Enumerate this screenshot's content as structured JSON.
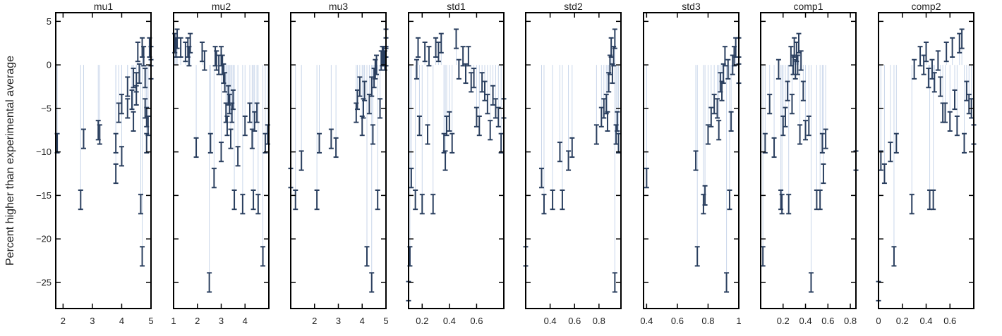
{
  "figure": {
    "ylabel": "Percent higher than experimental average",
    "colors": {
      "marker": "#2a3f5f",
      "stem": "#c9d6ea",
      "frame": "#000000"
    }
  },
  "chart_data": [
    {
      "type": "scatter",
      "title": "mu1",
      "xlim": [
        1.75,
        5
      ],
      "xticks": [
        2,
        3,
        4,
        5
      ],
      "ylim": [
        -28,
        6
      ],
      "y_ticks": [
        5,
        0,
        -5,
        -10,
        -15,
        -20,
        -25
      ],
      "error_bars": true,
      "grid": false,
      "points": [
        [
          1.8,
          -9
        ],
        [
          2.6,
          -15.5
        ],
        [
          2.7,
          -8.5
        ],
        [
          3.2,
          -7.5
        ],
        [
          3.25,
          -8
        ],
        [
          3.8,
          -12.5
        ],
        [
          3.8,
          -9
        ],
        [
          3.9,
          -5.5
        ],
        [
          4.0,
          -4.5
        ],
        [
          4.0,
          -10.5
        ],
        [
          4.2,
          -5
        ],
        [
          4.2,
          -2.5
        ],
        [
          4.35,
          -4
        ],
        [
          4.4,
          -1.5
        ],
        [
          4.4,
          -6.5
        ],
        [
          4.5,
          -2
        ],
        [
          4.5,
          -3.5
        ],
        [
          4.55,
          1.5
        ],
        [
          4.6,
          -1
        ],
        [
          4.65,
          -16
        ],
        [
          4.7,
          -22
        ],
        [
          4.7,
          2
        ],
        [
          4.75,
          1
        ],
        [
          4.8,
          -1.5
        ],
        [
          4.8,
          -5
        ],
        [
          4.85,
          -6
        ],
        [
          4.85,
          -9
        ],
        [
          4.9,
          -7
        ],
        [
          4.95,
          2
        ],
        [
          5.0,
          -0.5
        ],
        [
          5.0,
          1
        ]
      ]
    },
    {
      "type": "scatter",
      "title": "mu2",
      "xlim": [
        1,
        5
      ],
      "xticks": [
        1,
        2,
        3,
        4
      ],
      "ylim": [
        -28,
        6
      ],
      "y_ticks": [
        5,
        0,
        -5,
        -10,
        -15,
        -20,
        -25
      ],
      "error_bars": true,
      "grid": false,
      "points": [
        [
          1.05,
          2.5
        ],
        [
          1.1,
          2
        ],
        [
          1.15,
          3
        ],
        [
          1.3,
          2
        ],
        [
          1.5,
          1.5
        ],
        [
          1.6,
          2
        ],
        [
          1.65,
          1
        ],
        [
          1.7,
          2.5
        ],
        [
          1.95,
          -9.5
        ],
        [
          2.2,
          1.5
        ],
        [
          2.3,
          0.5
        ],
        [
          2.5,
          -25
        ],
        [
          2.55,
          -9
        ],
        [
          2.7,
          -13
        ],
        [
          2.75,
          1
        ],
        [
          2.8,
          0.5
        ],
        [
          2.9,
          0
        ],
        [
          3.0,
          -10
        ],
        [
          3.0,
          1
        ],
        [
          3.05,
          0
        ],
        [
          3.1,
          -1
        ],
        [
          3.15,
          -2
        ],
        [
          3.2,
          -5.5
        ],
        [
          3.25,
          -7
        ],
        [
          3.3,
          -3.5
        ],
        [
          3.35,
          -4.5
        ],
        [
          3.4,
          -8.5
        ],
        [
          3.45,
          -5.5
        ],
        [
          3.5,
          -4
        ],
        [
          3.55,
          -15.5
        ],
        [
          3.7,
          -10.5
        ],
        [
          3.9,
          -16
        ],
        [
          4.0,
          -7
        ],
        [
          4.2,
          -5.5
        ],
        [
          4.3,
          -8.5
        ],
        [
          4.35,
          -15.5
        ],
        [
          4.4,
          -6.5
        ],
        [
          4.5,
          -5.5
        ],
        [
          4.55,
          -16
        ],
        [
          4.75,
          -22
        ],
        [
          4.85,
          -9
        ],
        [
          4.95,
          -8
        ]
      ]
    },
    {
      "type": "scatter",
      "title": "mu3",
      "xlim": [
        1,
        5
      ],
      "xticks": [
        2,
        3,
        4,
        5
      ],
      "ylim": [
        -28,
        6
      ],
      "y_ticks": [
        5,
        0,
        -5,
        -10,
        -15,
        -20,
        -25
      ],
      "error_bars": true,
      "grid": false,
      "points": [
        [
          1.0,
          -13
        ],
        [
          1.2,
          -15.5
        ],
        [
          1.45,
          -11
        ],
        [
          2.1,
          -15.5
        ],
        [
          2.2,
          -9
        ],
        [
          2.7,
          -8.5
        ],
        [
          2.9,
          -9.5
        ],
        [
          3.75,
          -5.5
        ],
        [
          3.8,
          -4
        ],
        [
          3.9,
          -2.5
        ],
        [
          4.0,
          -7
        ],
        [
          4.05,
          -5
        ],
        [
          4.1,
          -3
        ],
        [
          4.2,
          -22
        ],
        [
          4.3,
          -4.5
        ],
        [
          4.4,
          -25
        ],
        [
          4.4,
          -2.5
        ],
        [
          4.45,
          -8
        ],
        [
          4.5,
          -1.5
        ],
        [
          4.55,
          -0.5
        ],
        [
          4.6,
          0
        ],
        [
          4.65,
          -15.5
        ],
        [
          4.75,
          -5
        ],
        [
          4.8,
          0.5
        ],
        [
          4.85,
          1
        ],
        [
          4.9,
          1
        ],
        [
          4.95,
          0.5
        ],
        [
          5.0,
          1
        ],
        [
          5.0,
          2
        ],
        [
          5.0,
          3
        ]
      ]
    },
    {
      "type": "scatter",
      "title": "std1",
      "xlim": [
        0.1,
        0.8
      ],
      "xticks": [
        0.2,
        0.4,
        0.6
      ],
      "ylim": [
        -28,
        6
      ],
      "y_ticks": [
        5,
        0,
        -5,
        -10,
        -15,
        -20,
        -25
      ],
      "error_bars": true,
      "grid": false,
      "points": [
        [
          0.1,
          -26
        ],
        [
          0.11,
          -22
        ],
        [
          0.12,
          -13
        ],
        [
          0.15,
          -15.5
        ],
        [
          0.16,
          -0.5
        ],
        [
          0.17,
          2
        ],
        [
          0.18,
          -7
        ],
        [
          0.2,
          -16
        ],
        [
          0.22,
          1.5
        ],
        [
          0.24,
          -8
        ],
        [
          0.25,
          1
        ],
        [
          0.28,
          -16
        ],
        [
          0.3,
          2
        ],
        [
          0.32,
          1.5
        ],
        [
          0.34,
          2.5
        ],
        [
          0.36,
          -9
        ],
        [
          0.37,
          -11
        ],
        [
          0.38,
          -7
        ],
        [
          0.4,
          -6.5
        ],
        [
          0.42,
          -9
        ],
        [
          0.45,
          3
        ],
        [
          0.47,
          -0.5
        ],
        [
          0.5,
          1
        ],
        [
          0.52,
          -1
        ],
        [
          0.54,
          1
        ],
        [
          0.56,
          -2
        ],
        [
          0.58,
          -1.5
        ],
        [
          0.6,
          -6
        ],
        [
          0.62,
          -7
        ],
        [
          0.64,
          -2
        ],
        [
          0.66,
          -3
        ],
        [
          0.68,
          -4.5
        ],
        [
          0.7,
          -7.5
        ],
        [
          0.72,
          -3.5
        ],
        [
          0.74,
          -5
        ],
        [
          0.76,
          -6
        ],
        [
          0.78,
          -9
        ],
        [
          0.8,
          -5
        ]
      ]
    },
    {
      "type": "scatter",
      "title": "std2",
      "xlim": [
        0.2,
        0.98
      ],
      "xticks": [
        0.4,
        0.6,
        0.8
      ],
      "ylim": [
        -28,
        6
      ],
      "y_ticks": [
        5,
        0,
        -5,
        -10,
        -15,
        -20,
        -25
      ],
      "error_bars": true,
      "grid": false,
      "points": [
        [
          0.2,
          -22
        ],
        [
          0.33,
          -13
        ],
        [
          0.35,
          -16
        ],
        [
          0.42,
          -15.5
        ],
        [
          0.48,
          -10
        ],
        [
          0.5,
          -15.5
        ],
        [
          0.55,
          -11
        ],
        [
          0.58,
          -9.5
        ],
        [
          0.78,
          -8
        ],
        [
          0.82,
          -6
        ],
        [
          0.84,
          -5
        ],
        [
          0.86,
          -4.5
        ],
        [
          0.87,
          -6.5
        ],
        [
          0.88,
          -2
        ],
        [
          0.89,
          0
        ],
        [
          0.9,
          2
        ],
        [
          0.91,
          -1
        ],
        [
          0.92,
          1
        ],
        [
          0.93,
          -25
        ],
        [
          0.93,
          3
        ],
        [
          0.94,
          -8
        ],
        [
          0.95,
          -6.5
        ],
        [
          0.96,
          -9
        ]
      ]
    },
    {
      "type": "scatter",
      "title": "std3",
      "xlim": [
        0.38,
        1
      ],
      "xticks": [
        0.4,
        0.6,
        0.8,
        1
      ],
      "ylim": [
        -28,
        6
      ],
      "y_ticks": [
        5,
        0,
        -5,
        -10,
        -15,
        -20,
        -25
      ],
      "error_bars": true,
      "grid": false,
      "points": [
        [
          0.4,
          -13
        ],
        [
          0.72,
          -11
        ],
        [
          0.73,
          -22
        ],
        [
          0.77,
          -16
        ],
        [
          0.78,
          -15
        ],
        [
          0.8,
          -8
        ],
        [
          0.82,
          -6
        ],
        [
          0.84,
          -4.5
        ],
        [
          0.86,
          -5
        ],
        [
          0.87,
          -7.5
        ],
        [
          0.88,
          -2
        ],
        [
          0.89,
          -3
        ],
        [
          0.9,
          -1
        ],
        [
          0.91,
          1
        ],
        [
          0.92,
          -25
        ],
        [
          0.93,
          -0.5
        ],
        [
          0.94,
          -15.5
        ],
        [
          0.95,
          -6.5
        ],
        [
          0.96,
          0
        ],
        [
          0.97,
          1
        ],
        [
          0.98,
          2
        ],
        [
          1.0,
          2
        ],
        [
          1.0,
          -1
        ]
      ]
    },
    {
      "type": "scatter",
      "title": "comp1",
      "xlim": [
        0,
        0.85
      ],
      "xticks": [
        0.2,
        0.4,
        0.6,
        0.8
      ],
      "ylim": [
        -28,
        6
      ],
      "y_ticks": [
        5,
        0,
        -5,
        -10,
        -15,
        -20,
        -25
      ],
      "error_bars": true,
      "grid": false,
      "points": [
        [
          0.02,
          -22
        ],
        [
          0.04,
          -9
        ],
        [
          0.08,
          -4.5
        ],
        [
          0.12,
          -9.5
        ],
        [
          0.16,
          -0.5
        ],
        [
          0.18,
          -15.5
        ],
        [
          0.19,
          -16
        ],
        [
          0.2,
          -7
        ],
        [
          0.22,
          -6
        ],
        [
          0.24,
          -3
        ],
        [
          0.25,
          -16
        ],
        [
          0.27,
          1
        ],
        [
          0.28,
          -4.5
        ],
        [
          0.29,
          0
        ],
        [
          0.3,
          2
        ],
        [
          0.31,
          -0.5
        ],
        [
          0.32,
          1.5
        ],
        [
          0.33,
          0
        ],
        [
          0.34,
          2.5
        ],
        [
          0.35,
          -8
        ],
        [
          0.36,
          0.5
        ],
        [
          0.38,
          -3
        ],
        [
          0.4,
          -7.5
        ],
        [
          0.43,
          -7
        ],
        [
          0.45,
          -25
        ],
        [
          0.5,
          -15.5
        ],
        [
          0.53,
          -15.5
        ],
        [
          0.55,
          -9
        ],
        [
          0.56,
          -12.5
        ],
        [
          0.58,
          -8.5
        ],
        [
          0.85,
          -11
        ]
      ]
    },
    {
      "type": "scatter",
      "title": "comp2",
      "xlim": [
        0,
        0.8
      ],
      "xticks": [
        0,
        0.2,
        0.4,
        0.6
      ],
      "ylim": [
        -28,
        6
      ],
      "y_ticks": [
        5,
        0,
        -5,
        -10,
        -15,
        -20,
        -25
      ],
      "error_bars": true,
      "grid": false,
      "points": [
        [
          0,
          -26
        ],
        [
          0.02,
          -11
        ],
        [
          0.05,
          -12.5
        ],
        [
          0.1,
          -10
        ],
        [
          0.13,
          -22
        ],
        [
          0.15,
          -9
        ],
        [
          0.28,
          -16
        ],
        [
          0.3,
          -0.5
        ],
        [
          0.35,
          1
        ],
        [
          0.38,
          0
        ],
        [
          0.4,
          1.5
        ],
        [
          0.42,
          -1.5
        ],
        [
          0.43,
          -15.5
        ],
        [
          0.45,
          -0.5
        ],
        [
          0.46,
          -15.5
        ],
        [
          0.47,
          -2
        ],
        [
          0.5,
          0.5
        ],
        [
          0.52,
          -2.5
        ],
        [
          0.54,
          -5.5
        ],
        [
          0.56,
          -5.5
        ],
        [
          0.57,
          1.5
        ],
        [
          0.6,
          -6.5
        ],
        [
          0.62,
          2
        ],
        [
          0.64,
          -4
        ],
        [
          0.66,
          -7
        ],
        [
          0.68,
          2.5
        ],
        [
          0.7,
          3
        ],
        [
          0.72,
          -9
        ],
        [
          0.74,
          -3
        ],
        [
          0.76,
          -4.5
        ],
        [
          0.78,
          -5
        ],
        [
          0.8,
          -8
        ]
      ]
    }
  ]
}
